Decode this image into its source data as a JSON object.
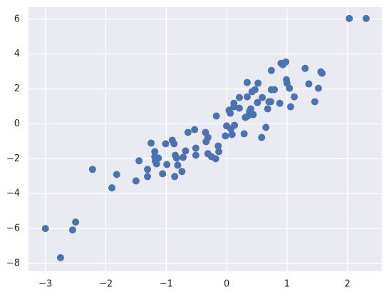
{
  "chart_data": {
    "type": "scatter",
    "color": "#4c72b0",
    "grid": true,
    "xlim": [
      -3.28,
      2.57
    ],
    "ylim": [
      -8.45,
      6.69
    ],
    "xticks": [
      {
        "value": -3,
        "label": "−3"
      },
      {
        "value": -2,
        "label": "−2"
      },
      {
        "value": -1,
        "label": "−1"
      },
      0,
      1,
      2
    ],
    "yticks": [
      {
        "value": -8,
        "label": "−8"
      },
      {
        "value": -6,
        "label": "−6"
      },
      {
        "value": -4,
        "label": "−4"
      },
      {
        "value": -2,
        "label": "−2"
      },
      0,
      2,
      4,
      6
    ],
    "x": [
      2.03,
      2.31,
      -3.0,
      -2.75,
      -2.55,
      -2.5,
      -2.22,
      -1.9,
      -1.82,
      -1.5,
      -1.45,
      -1.31,
      -1.31,
      -1.25,
      -1.19,
      -1.19,
      -1.18,
      -1.16,
      -1.13,
      -1.06,
      -1.01,
      -0.99,
      -0.9,
      -0.87,
      -0.86,
      -0.85,
      -0.83,
      -0.81,
      -0.74,
      -0.72,
      -0.68,
      -0.64,
      -0.53,
      -0.51,
      -0.51,
      -0.35,
      -0.34,
      -0.31,
      -0.31,
      -0.25,
      -0.18,
      -0.17,
      -0.14,
      -0.13,
      -0.02,
      0.0,
      0.04,
      0.06,
      0.07,
      0.09,
      0.12,
      0.12,
      0.13,
      0.21,
      0.21,
      0.29,
      0.31,
      0.34,
      0.34,
      0.35,
      0.38,
      0.4,
      0.4,
      0.42,
      0.44,
      0.47,
      0.51,
      0.52,
      0.58,
      0.59,
      0.65,
      0.68,
      0.7,
      0.73,
      0.74,
      0.74,
      0.79,
      0.88,
      0.9,
      0.93,
      0.98,
      0.99,
      1.0,
      1.04,
      1.06,
      1.12,
      1.3,
      1.36,
      1.46,
      1.52,
      1.56,
      1.58
    ],
    "values": [
      6.04,
      6.04,
      -6.0,
      -7.67,
      -6.08,
      -5.63,
      -2.61,
      -3.67,
      -2.9,
      -3.27,
      -2.12,
      -3.02,
      -2.61,
      -1.1,
      -1.59,
      -1.88,
      -2.12,
      -2.29,
      -1.96,
      -2.86,
      -1.14,
      -2.33,
      -0.94,
      -1.14,
      -3.02,
      -1.8,
      -1.96,
      -2.37,
      -2.73,
      -1.92,
      -1.55,
      -0.49,
      -0.33,
      -1.39,
      -1.8,
      -0.49,
      -1.02,
      -0.78,
      -1.71,
      -1.88,
      -2.0,
      0.45,
      -1.27,
      -1.59,
      -0.69,
      -0.12,
      0.78,
      0.61,
      -0.29,
      -0.61,
      1.18,
      0.98,
      -0.08,
      1.51,
      0.9,
      -0.57,
      0.37,
      2.37,
      1.55,
      0.45,
      0.73,
      0.86,
      0.57,
      1.84,
      0.53,
      1.96,
      1.22,
      2.33,
      -0.78,
      1.51,
      -0.2,
      0.86,
      1.27,
      1.27,
      1.96,
      3.06,
      1.96,
      1.18,
      3.47,
      3.39,
      3.55,
      2.53,
      2.33,
      2.04,
      0.98,
      1.55,
      3.18,
      2.29,
      1.27,
      2.04,
      2.98,
      2.9
    ]
  }
}
